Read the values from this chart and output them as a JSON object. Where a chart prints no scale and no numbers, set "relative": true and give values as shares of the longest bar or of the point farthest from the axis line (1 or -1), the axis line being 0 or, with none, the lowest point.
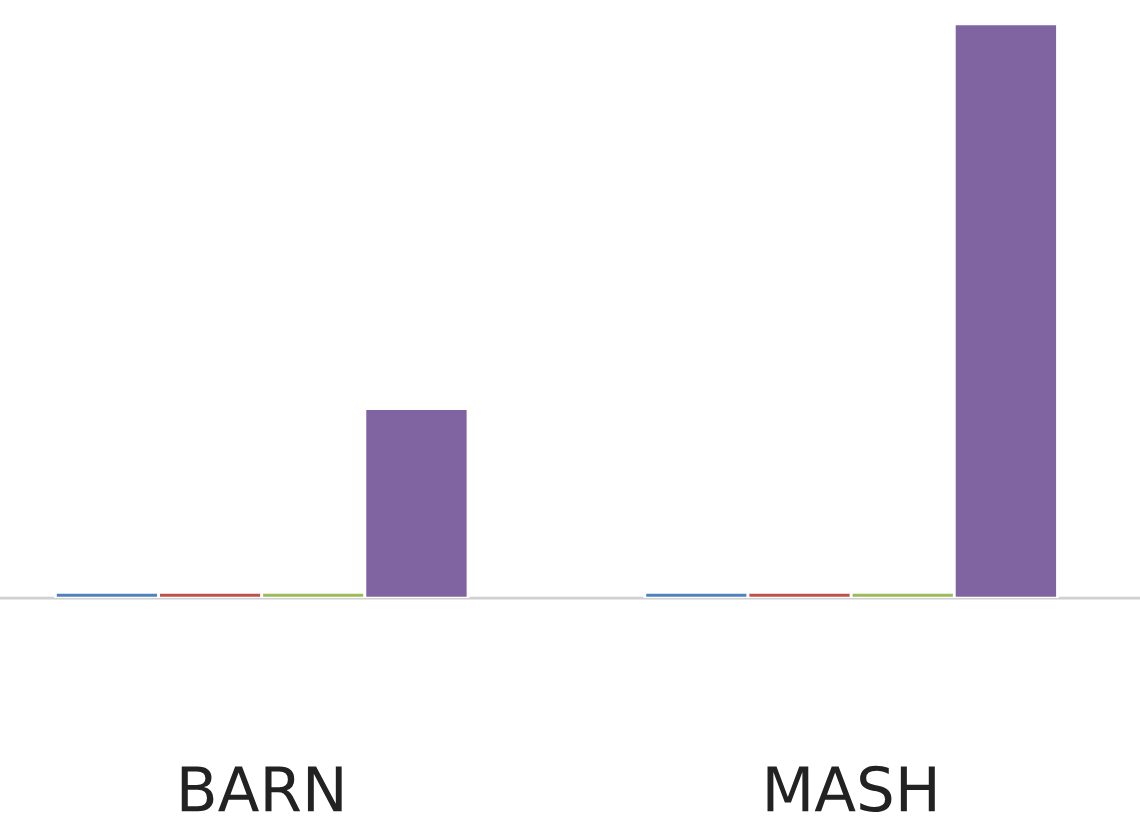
{
  "chart_data": {
    "type": "bar",
    "relative": true,
    "categories": [
      "BARN",
      "MASH"
    ],
    "series": [
      {
        "color": "#4f81bd",
        "values": [
          0.01,
          0.01
        ]
      },
      {
        "color": "#c0504d",
        "values": [
          0.01,
          0.01
        ]
      },
      {
        "color": "#9bbb59",
        "values": [
          0.01,
          0.01
        ]
      },
      {
        "color": "#8064a2",
        "values": [
          0.33,
          1
        ]
      }
    ],
    "grid": false,
    "legend": false
  }
}
